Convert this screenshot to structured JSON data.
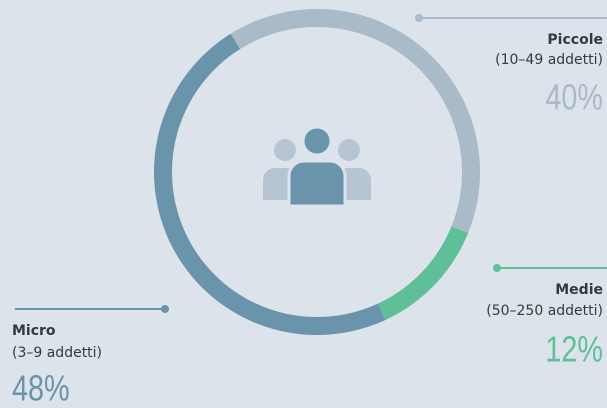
{
  "chart_data": {
    "type": "pie",
    "categories": [
      "Piccole",
      "Medie",
      "Micro"
    ],
    "sublabels": [
      "(10–49 addetti)",
      "(50–250 addetti)",
      "(3–9 addetti)"
    ],
    "values": [
      40,
      12,
      48
    ],
    "value_labels": [
      "40%",
      "12%",
      "48%"
    ],
    "colors": [
      "#a9bac9",
      "#5fbf99",
      "#6a93ac"
    ]
  }
}
